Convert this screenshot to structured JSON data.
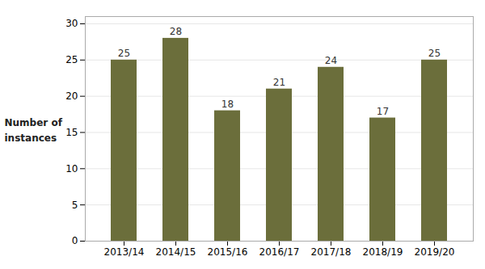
{
  "chart_data": {
    "type": "bar",
    "ylabel": "Number of\ninstances",
    "categories": [
      "2013/14",
      "2014/15",
      "2015/16",
      "2016/17",
      "2017/18",
      "2018/19",
      "2019/20"
    ],
    "values": [
      25,
      28,
      18,
      21,
      24,
      17,
      25
    ],
    "color": "#6b6e3b",
    "ylim": [
      0,
      31
    ],
    "yticks": [
      0,
      5,
      10,
      15,
      20,
      25,
      30
    ],
    "grid": true,
    "data_labels": true
  }
}
